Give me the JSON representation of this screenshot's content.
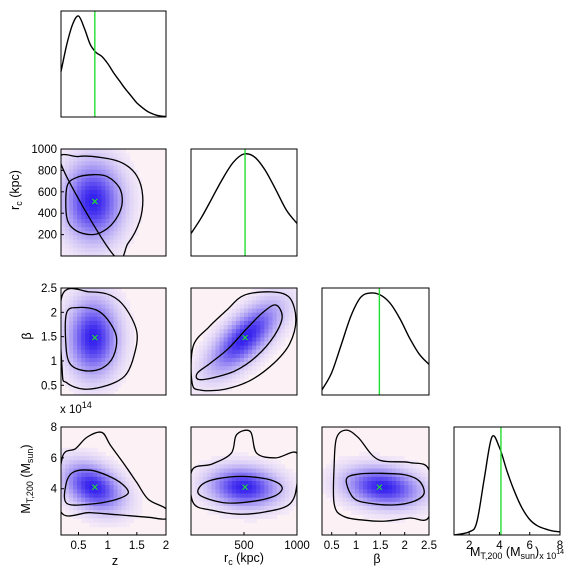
{
  "chart_data": {
    "type": "corner",
    "parameters": [
      "z",
      "r_c (kpc)",
      "β",
      "M_T,200 (M_sun)"
    ],
    "axis_labels": {
      "z": "z",
      "r_c": {
        "main": "r",
        "sub": "c",
        "rest": " (kpc)"
      },
      "beta": "β",
      "mass": {
        "main": "M",
        "sub": "T,200",
        "mid": " (M",
        "sub2": "sun",
        "end": ")"
      }
    },
    "mass_multiplier": "x 10",
    "mass_multiplier_exp": "14",
    "ranges": {
      "z": [
        0.2,
        2.0
      ],
      "r_c": [
        0,
        1000
      ],
      "beta": [
        0.3,
        2.5
      ],
      "mass": [
        1.0,
        8.0
      ]
    },
    "ticks": {
      "z": [
        0.5,
        1,
        1.5,
        2
      ],
      "z_labels": [
        "0.5",
        "1",
        "1.5",
        "2"
      ],
      "r_c": [
        500,
        1000
      ],
      "r_c_labels": [
        "500",
        "1000"
      ],
      "r_c_y": [
        200,
        400,
        600,
        800,
        1000
      ],
      "r_c_y_labels": [
        "200",
        "400",
        "600",
        "800",
        "1000"
      ],
      "beta": [
        0.5,
        1,
        1.5,
        2,
        2.5
      ],
      "beta_labels": [
        "0.5",
        "1",
        "1.5",
        "2",
        "2.5"
      ],
      "mass_x": [
        2,
        4,
        6,
        8
      ],
      "mass_x_labels": [
        "2",
        "4",
        "6",
        "8"
      ],
      "mass_y": [
        4,
        6,
        8
      ],
      "mass_y_labels": [
        "4",
        "6",
        "8"
      ]
    },
    "best_fit": {
      "z": 0.78,
      "r_c": 510,
      "beta": 1.48,
      "mass": 4.1
    },
    "marginals": {
      "z": {
        "x": [
          0.2,
          0.3,
          0.4,
          0.5,
          0.6,
          0.7,
          0.8,
          0.9,
          1.0,
          1.1,
          1.2,
          1.3,
          1.4,
          1.5,
          1.6,
          1.7,
          1.8,
          1.9,
          2.0
        ],
        "y": [
          0.45,
          0.72,
          0.92,
          1.0,
          0.88,
          0.72,
          0.64,
          0.6,
          0.53,
          0.44,
          0.36,
          0.28,
          0.21,
          0.14,
          0.09,
          0.05,
          0.025,
          0.01,
          0.005
        ]
      },
      "r_c": {
        "x": [
          0,
          100,
          200,
          300,
          400,
          500,
          600,
          700,
          800,
          900,
          1000
        ],
        "y": [
          0.22,
          0.38,
          0.57,
          0.76,
          0.92,
          1.0,
          0.97,
          0.84,
          0.65,
          0.45,
          0.32
        ]
      },
      "beta": {
        "x": [
          0.3,
          0.5,
          0.7,
          0.9,
          1.1,
          1.3,
          1.5,
          1.7,
          1.9,
          2.1,
          2.3,
          2.5
        ],
        "y": [
          0.05,
          0.22,
          0.5,
          0.78,
          0.96,
          1.0,
          0.98,
          0.9,
          0.75,
          0.56,
          0.4,
          0.3
        ]
      },
      "mass": {
        "x": [
          1.0,
          2.0,
          2.5,
          3.0,
          3.5,
          4.0,
          4.5,
          5.0,
          5.5,
          6.0,
          6.5,
          7.0,
          7.5,
          8.0
        ],
        "y": [
          0.0,
          0.03,
          0.12,
          0.55,
          0.95,
          0.85,
          0.62,
          0.42,
          0.26,
          0.15,
          0.09,
          0.06,
          0.04,
          0.03
        ]
      }
    },
    "joint": {
      "z_r_c": {
        "center": [
          0.75,
          510
        ],
        "sigma": [
          0.35,
          260
        ],
        "rho": 0.0,
        "inner": [
          [
            0.3,
            640
          ],
          [
            0.45,
            730
          ],
          [
            0.75,
            760
          ],
          [
            1.0,
            740
          ],
          [
            1.2,
            640
          ],
          [
            1.25,
            510
          ],
          [
            1.18,
            380
          ],
          [
            1.0,
            260
          ],
          [
            0.75,
            200
          ],
          [
            0.45,
            240
          ],
          [
            0.3,
            360
          ]
        ],
        "outer": [
          [
            0.2,
            860
          ],
          [
            0.5,
            930
          ],
          [
            0.9,
            920
          ],
          [
            1.25,
            870
          ],
          [
            1.5,
            750
          ],
          [
            1.6,
            560
          ],
          [
            1.55,
            330
          ],
          [
            1.35,
            120
          ],
          [
            1.1,
            10
          ]
        ]
      },
      "z_beta": {
        "center": [
          0.75,
          1.48
        ],
        "sigma": [
          0.3,
          0.55
        ],
        "rho": 0.0,
        "inner": [
          [
            0.3,
            2.0
          ],
          [
            0.5,
            2.1
          ],
          [
            0.8,
            2.05
          ],
          [
            1.0,
            1.85
          ],
          [
            1.15,
            1.5
          ],
          [
            1.1,
            1.1
          ],
          [
            0.9,
            0.85
          ],
          [
            0.6,
            0.8
          ],
          [
            0.35,
            0.95
          ],
          [
            0.28,
            1.4
          ]
        ],
        "outer": [
          [
            0.22,
            2.35
          ],
          [
            0.7,
            2.42
          ],
          [
            1.05,
            2.35
          ],
          [
            1.3,
            2.1
          ],
          [
            1.5,
            1.6
          ],
          [
            1.45,
            1.1
          ],
          [
            1.3,
            0.7
          ],
          [
            1.0,
            0.5
          ],
          [
            0.6,
            0.42
          ],
          [
            0.3,
            0.55
          ],
          [
            0.22,
            0.8
          ]
        ]
      },
      "r_c_beta": {
        "center": [
          510,
          1.48
        ],
        "sigma": [
          230,
          0.5
        ],
        "rho": 0.7,
        "inner": [
          [
            60,
            0.75
          ],
          [
            180,
            0.95
          ],
          [
            350,
            1.25
          ],
          [
            520,
            1.65
          ],
          [
            680,
            2.0
          ],
          [
            800,
            2.15
          ],
          [
            860,
            1.9
          ],
          [
            780,
            1.5
          ],
          [
            620,
            1.1
          ],
          [
            420,
            0.8
          ],
          [
            200,
            0.65
          ],
          [
            70,
            0.62
          ]
        ],
        "outer": [
          [
            20,
            1.3
          ],
          [
            170,
            1.7
          ],
          [
            340,
            2.05
          ],
          [
            500,
            2.35
          ],
          [
            760,
            2.42
          ],
          [
            930,
            2.3
          ],
          [
            990,
            1.85
          ],
          [
            930,
            1.35
          ],
          [
            780,
            0.95
          ],
          [
            560,
            0.6
          ],
          [
            320,
            0.42
          ],
          [
            90,
            0.4
          ],
          [
            10,
            0.55
          ]
        ]
      },
      "z_mass": {
        "center": [
          0.75,
          4.1
        ],
        "sigma": [
          0.35,
          1.1
        ],
        "rho": -0.35,
        "inner": [
          [
            0.3,
            3.05
          ],
          [
            0.7,
            3.0
          ],
          [
            1.1,
            3.25
          ],
          [
            1.35,
            3.7
          ],
          [
            1.25,
            4.3
          ],
          [
            1.0,
            4.85
          ],
          [
            0.7,
            5.2
          ],
          [
            0.4,
            5.05
          ],
          [
            0.28,
            4.2
          ]
        ],
        "outer": [
          [
            0.2,
            2.5
          ],
          [
            0.7,
            2.45
          ],
          [
            1.2,
            2.3
          ],
          [
            1.7,
            2.15
          ],
          [
            2.0,
            2.05
          ],
          [
            2.0,
            2.7
          ],
          [
            1.7,
            3.3
          ],
          [
            1.5,
            4.4
          ],
          [
            1.3,
            5.5
          ],
          [
            1.05,
            6.8
          ],
          [
            0.9,
            7.65
          ],
          [
            0.65,
            7.35
          ],
          [
            0.45,
            6.6
          ],
          [
            0.22,
            6.0
          ]
        ]
      },
      "r_c_mass": {
        "center": [
          500,
          4.1
        ],
        "sigma": [
          230,
          0.9
        ],
        "rho": -0.1,
        "inner": [
          [
            80,
            3.6
          ],
          [
            300,
            3.1
          ],
          [
            550,
            3.15
          ],
          [
            780,
            3.5
          ],
          [
            860,
            4.05
          ],
          [
            760,
            4.55
          ],
          [
            500,
            4.8
          ],
          [
            250,
            4.65
          ],
          [
            100,
            4.25
          ]
        ],
        "outer": [
          [
            10,
            5.2
          ],
          [
            200,
            5.6
          ],
          [
            380,
            6.3
          ],
          [
            430,
            7.5
          ],
          [
            560,
            7.7
          ],
          [
            620,
            6.3
          ],
          [
            800,
            6.0
          ],
          [
            1000,
            6.3
          ],
          [
            1000,
            4.3
          ],
          [
            930,
            3.0
          ],
          [
            700,
            2.5
          ],
          [
            450,
            2.35
          ],
          [
            200,
            2.6
          ],
          [
            20,
            3.1
          ]
        ]
      },
      "beta_mass": {
        "center": [
          1.55,
          4.1
        ],
        "sigma": [
          0.55,
          0.9
        ],
        "rho": -0.2,
        "inner": [
          [
            0.8,
            4.6
          ],
          [
            0.95,
            3.4
          ],
          [
            1.3,
            3.05
          ],
          [
            1.8,
            2.95
          ],
          [
            2.2,
            3.2
          ],
          [
            2.4,
            3.7
          ],
          [
            2.3,
            4.5
          ],
          [
            2.0,
            4.9
          ],
          [
            1.5,
            5.0
          ],
          [
            1.05,
            4.95
          ]
        ],
        "outer": [
          [
            0.55,
            5.6
          ],
          [
            0.55,
            3.0
          ],
          [
            0.75,
            2.2
          ],
          [
            1.2,
            1.95
          ],
          [
            1.6,
            1.9
          ],
          [
            2.1,
            2.1
          ],
          [
            2.5,
            2.2
          ],
          [
            2.5,
            5.2
          ],
          [
            2.1,
            5.7
          ],
          [
            1.45,
            5.9
          ],
          [
            1.05,
            7.3
          ],
          [
            0.8,
            7.8
          ],
          [
            0.6,
            7.3
          ]
        ]
      }
    }
  }
}
